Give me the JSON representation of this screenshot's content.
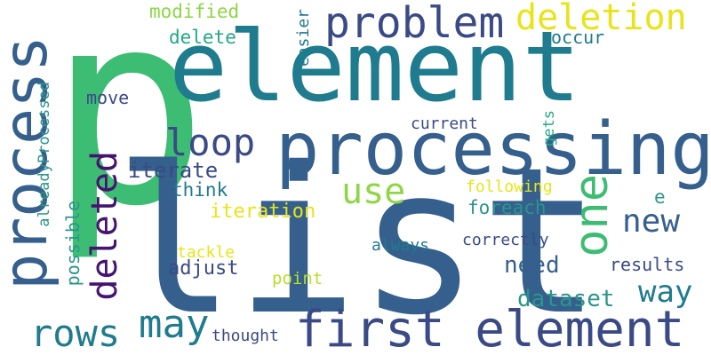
{
  "colors": {
    "background": "#ffffff",
    "green": "#3dbc74",
    "teal": "#1f7b8e",
    "blue": "#355f8d",
    "darkblue": "#3a4a86",
    "purple": "#45146e",
    "lightgreen": "#8ed645",
    "yellowgreen": "#b8de29",
    "yellow": "#e8e419",
    "seagreen": "#22a884",
    "tealgreen": "#2a968b"
  },
  "words": [
    "p",
    "element",
    "list",
    "processing",
    "process",
    "first element",
    "one",
    "problem",
    "deletion",
    "loop",
    "deleted",
    "rows",
    "may",
    "use",
    "new",
    "way",
    "need",
    "dataset",
    "iterate",
    "modified",
    "delete",
    "occur",
    "easier",
    "move",
    "current",
    "gets",
    "alreadyProcessed",
    "think",
    "iteration",
    "foreach",
    "following",
    "e",
    "possible",
    "adjust",
    "tackle",
    "always",
    "correctly",
    "results",
    "point",
    "thought"
  ]
}
